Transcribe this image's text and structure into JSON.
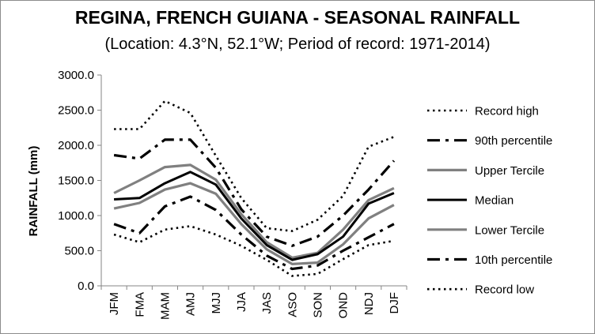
{
  "chart_data": {
    "type": "line",
    "title": "REGINA, FRENCH GUIANA - SEASONAL RAINFALL",
    "subtitle": "(Location: 4.3°N, 52.1°W; Period of record: 1971-2014)",
    "xlabel": "",
    "ylabel": "RAINFALL (mm)",
    "ylim": [
      0,
      3000
    ],
    "yticks": [
      "3000.0",
      "2500.0",
      "2000.0",
      "1500.0",
      "1000.0",
      "500.0",
      "0.0"
    ],
    "ytick_values": [
      3000,
      2500,
      2000,
      1500,
      1000,
      500,
      0
    ],
    "categories": [
      "JFM",
      "FMA",
      "MAM",
      "AMJ",
      "MJJ",
      "JJA",
      "JAS",
      "ASO",
      "SON",
      "OND",
      "NDJ",
      "DJF"
    ],
    "grid": false,
    "legend_position": "right",
    "series": [
      {
        "name": "Record high",
        "color": "#000000",
        "style": "dotted",
        "values": [
          2230,
          2230,
          2630,
          2460,
          1850,
          1250,
          820,
          780,
          940,
          1280,
          1980,
          2120
        ]
      },
      {
        "name": "90th percentile",
        "color": "#000000",
        "style": "dashdot",
        "values": [
          1860,
          1810,
          2080,
          2080,
          1680,
          1090,
          700,
          570,
          700,
          1000,
          1370,
          1780
        ]
      },
      {
        "name": "Upper Tercile",
        "color": "#808080",
        "style": "solid",
        "values": [
          1320,
          1500,
          1690,
          1720,
          1510,
          1020,
          620,
          400,
          470,
          800,
          1220,
          1390
        ]
      },
      {
        "name": "Median",
        "color": "#000000",
        "style": "solid",
        "values": [
          1230,
          1250,
          1460,
          1620,
          1440,
          960,
          580,
          370,
          450,
          700,
          1170,
          1320
        ]
      },
      {
        "name": "Lower Tercile",
        "color": "#808080",
        "style": "solid",
        "values": [
          1100,
          1180,
          1370,
          1460,
          1310,
          880,
          520,
          310,
          330,
          590,
          960,
          1150
        ]
      },
      {
        "name": "10th percentile",
        "color": "#000000",
        "style": "dashdot",
        "values": [
          880,
          750,
          1130,
          1270,
          1080,
          730,
          430,
          240,
          290,
          500,
          690,
          880
        ]
      },
      {
        "name": "Record low",
        "color": "#000000",
        "style": "dotted",
        "values": [
          730,
          620,
          800,
          850,
          730,
          570,
          370,
          140,
          170,
          380,
          580,
          640
        ]
      }
    ]
  }
}
